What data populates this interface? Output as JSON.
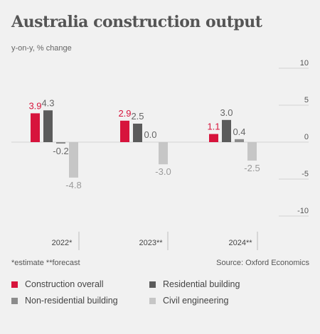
{
  "title": "Australia construction output",
  "subtitle": "y-on-y, % change",
  "footnote": "*estimate  **forecast",
  "source": "Source: Oxford Economics",
  "colors": {
    "construction_overall": "#d7143c",
    "residential_building": "#5b5b5b",
    "non_residential_building": "#8c8c8c",
    "civil_engineering": "#c6c6c6",
    "label_gray": "#666666",
    "light_label": "#9a9a9a"
  },
  "chart_data": {
    "type": "bar",
    "categories": [
      "2022*",
      "2023**",
      "2024**"
    ],
    "series": [
      {
        "name": "Construction overall",
        "values": [
          3.9,
          2.9,
          1.1
        ],
        "labels": [
          "3.9",
          "2.9",
          "1.1"
        ]
      },
      {
        "name": "Residential building",
        "values": [
          4.3,
          2.5,
          3.0
        ],
        "labels": [
          "4.3",
          "2.5",
          "3.0"
        ]
      },
      {
        "name": "Non-residential building",
        "values": [
          -0.2,
          0.0,
          0.4
        ],
        "labels": [
          "-0.2",
          "0.0",
          "0.4"
        ]
      },
      {
        "name": "Civil engineering",
        "values": [
          -4.8,
          -3.0,
          -2.5
        ],
        "labels": [
          "-4.8",
          "-3.0",
          "-2.5"
        ]
      }
    ],
    "ylim": [
      -10,
      10
    ],
    "yticks": [
      "10",
      "5",
      "0",
      "-5",
      "-10"
    ],
    "ytick_values": [
      10,
      5,
      0,
      -5,
      -10
    ],
    "legend_position": "bottom"
  }
}
